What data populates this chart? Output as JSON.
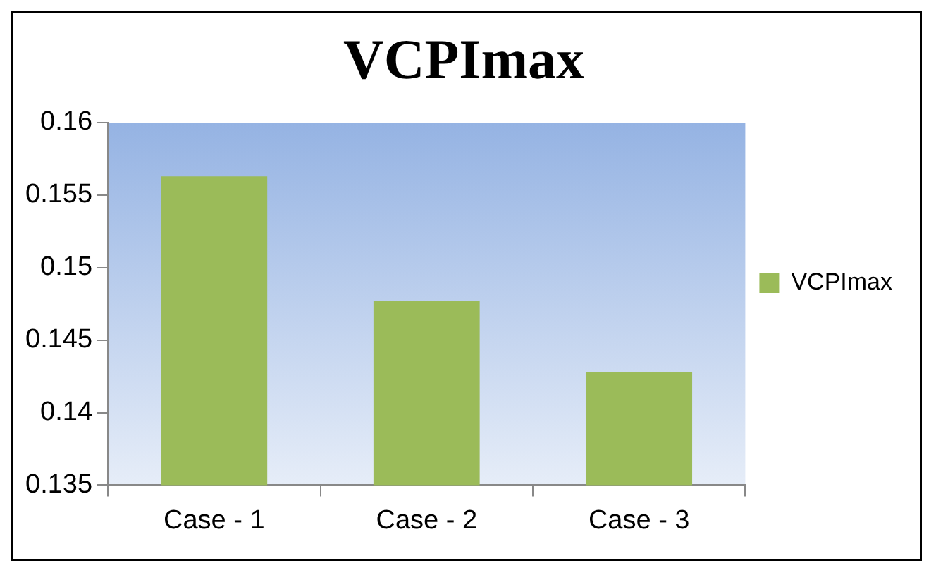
{
  "chart_data": {
    "type": "bar",
    "title": "VCPImax",
    "categories": [
      "Case - 1",
      "Case - 2",
      "Case - 3"
    ],
    "series": [
      {
        "name": "VCPImax",
        "color": "#9bbb59",
        "values": [
          0.1563,
          0.1477,
          0.1428
        ]
      }
    ],
    "ylim": [
      0.135,
      0.16
    ],
    "yticks": [
      0.135,
      0.14,
      0.145,
      0.15,
      0.155,
      0.16
    ],
    "grid": false,
    "legend": "right"
  }
}
